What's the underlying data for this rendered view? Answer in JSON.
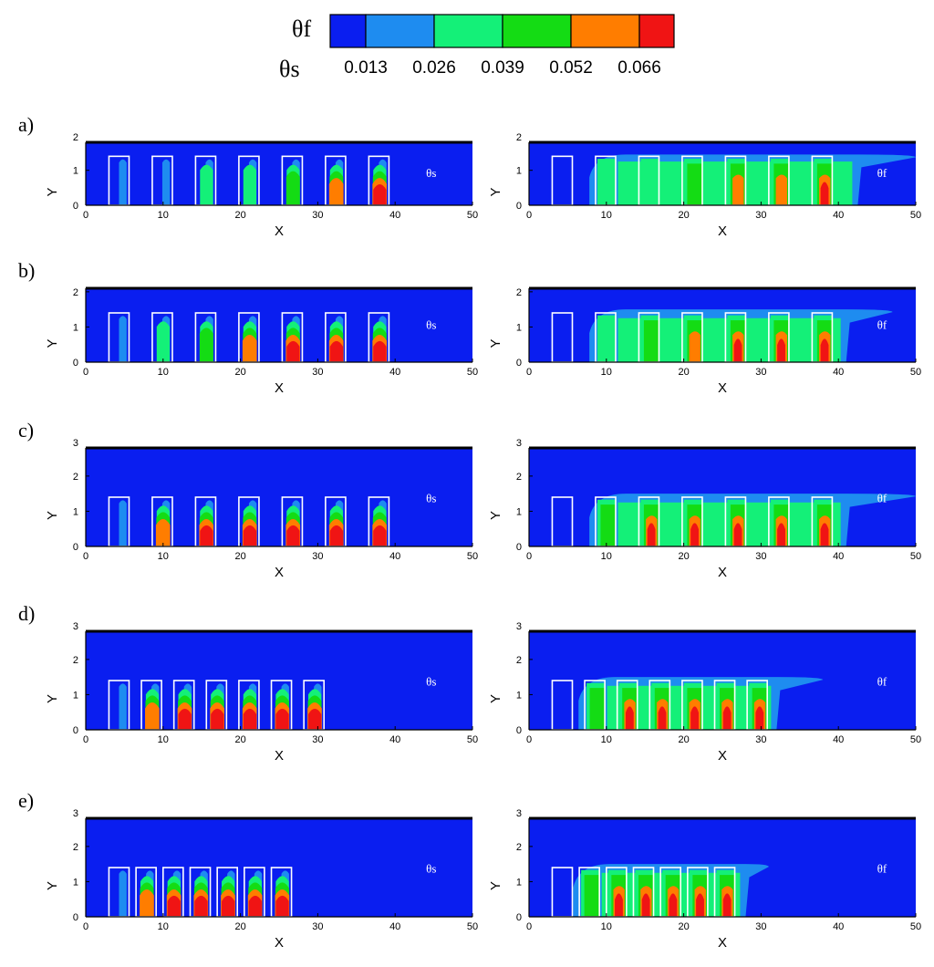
{
  "colorbar": {
    "title_fluid": "θf",
    "title_solid": "θs",
    "tick_labels": [
      "0.013",
      "0.026",
      "0.039",
      "0.052",
      "0.066"
    ],
    "colors": [
      "#0a1ef0",
      "#1e8cf0",
      "#14f078",
      "#14dc14",
      "#ff7d00",
      "#f01414"
    ]
  },
  "chart_data": [
    {
      "id": "a-solid",
      "row": "a)",
      "field": "θs",
      "type": "heatmap",
      "xlabel": "X",
      "ylabel": "Y",
      "xlim": [
        0,
        50
      ],
      "ylim": [
        0,
        1.8
      ],
      "xticks": [
        "0",
        "10",
        "20",
        "30",
        "40",
        "50"
      ],
      "yticks": [
        "0",
        "1",
        "2"
      ],
      "ymax": 1.8,
      "block_x": [
        3,
        8.6,
        14.2,
        19.8,
        25.4,
        31,
        36.6
      ],
      "block_width": 2.6,
      "block_height": 1.4,
      "levels": [
        1,
        1,
        2,
        2,
        3,
        4,
        5
      ],
      "hot_rows": [
        1,
        1,
        1,
        1,
        2,
        2,
        2
      ]
    },
    {
      "id": "a-fluid",
      "row": "a)",
      "field": "θf",
      "type": "heatmap",
      "xlabel": "X",
      "ylabel": "Y",
      "xlim": [
        0,
        50
      ],
      "ylim": [
        0,
        1.8
      ],
      "xticks": [
        "0",
        "10",
        "20",
        "30",
        "40",
        "50"
      ],
      "yticks": [
        "0",
        "1",
        "2"
      ],
      "ymax": 1.8,
      "block_x": [
        3,
        8.6,
        14.2,
        19.8,
        25.4,
        31,
        36.6
      ],
      "block_width": 2.6,
      "block_height": 1.4,
      "plume_end_x": 42.5,
      "plume_top": 1.45,
      "plume_tail_x": 50,
      "levels": [
        0,
        1,
        2,
        3,
        4,
        4,
        5
      ]
    },
    {
      "id": "b-solid",
      "row": "b)",
      "field": "θs",
      "type": "heatmap",
      "xlabel": "X",
      "ylabel": "Y",
      "xlim": [
        0,
        50
      ],
      "ylim": [
        0,
        2.1
      ],
      "xticks": [
        "0",
        "10",
        "20",
        "30",
        "40",
        "50"
      ],
      "yticks": [
        "0",
        "1",
        "2"
      ],
      "ymax": 2.1,
      "block_x": [
        3,
        8.6,
        14.2,
        19.8,
        25.4,
        31,
        36.6
      ],
      "block_width": 2.6,
      "block_height": 1.4,
      "levels": [
        1,
        2,
        3,
        4,
        5,
        5,
        5
      ]
    },
    {
      "id": "b-fluid",
      "row": "b)",
      "field": "θf",
      "type": "heatmap",
      "xlabel": "X",
      "ylabel": "Y",
      "xlim": [
        0,
        50
      ],
      "ylim": [
        0,
        2.1
      ],
      "xticks": [
        "0",
        "10",
        "20",
        "30",
        "40",
        "50"
      ],
      "yticks": [
        "0",
        "1",
        "2"
      ],
      "ymax": 2.1,
      "block_x": [
        3,
        8.6,
        14.2,
        19.8,
        25.4,
        31,
        36.6
      ],
      "block_width": 2.6,
      "block_height": 1.4,
      "plume_end_x": 41,
      "plume_top": 1.5,
      "plume_tail_x": 47,
      "levels": [
        0,
        1,
        3,
        4,
        5,
        5,
        5
      ]
    },
    {
      "id": "c-solid",
      "row": "c)",
      "field": "θs",
      "type": "heatmap",
      "xlabel": "X",
      "ylabel": "Y",
      "xlim": [
        0,
        50
      ],
      "ylim": [
        0,
        2.8
      ],
      "xticks": [
        "0",
        "10",
        "20",
        "30",
        "40",
        "50"
      ],
      "yticks": [
        "0",
        "1",
        "2",
        "3"
      ],
      "ymax": 2.8,
      "block_x": [
        3,
        8.6,
        14.2,
        19.8,
        25.4,
        31,
        36.6
      ],
      "block_width": 2.6,
      "block_height": 1.4,
      "levels": [
        1,
        4,
        5,
        5,
        5,
        5,
        5
      ]
    },
    {
      "id": "c-fluid",
      "row": "c)",
      "field": "θf",
      "type": "heatmap",
      "xlabel": "X",
      "ylabel": "Y",
      "xlim": [
        0,
        50
      ],
      "ylim": [
        0,
        2.8
      ],
      "xticks": [
        "0",
        "10",
        "20",
        "30",
        "40",
        "50"
      ],
      "yticks": [
        "0",
        "1",
        "2",
        "3"
      ],
      "ymax": 2.8,
      "block_x": [
        3,
        8.6,
        14.2,
        19.8,
        25.4,
        31,
        36.6
      ],
      "block_width": 2.6,
      "block_height": 1.4,
      "plume_end_x": 41,
      "plume_top": 1.5,
      "plume_tail_x": 50,
      "levels": [
        0,
        3,
        5,
        5,
        5,
        5,
        5
      ]
    },
    {
      "id": "d-solid",
      "row": "d)",
      "field": "θs",
      "type": "heatmap",
      "xlabel": "X",
      "ylabel": "Y",
      "xlim": [
        0,
        50
      ],
      "ylim": [
        0,
        2.8
      ],
      "xticks": [
        "0",
        "10",
        "20",
        "30",
        "40",
        "50"
      ],
      "yticks": [
        "0",
        "1",
        "2",
        "3"
      ],
      "ymax": 2.8,
      "block_x": [
        3,
        7.2,
        11.4,
        15.6,
        19.8,
        24,
        28.2
      ],
      "block_width": 2.6,
      "block_height": 1.4,
      "levels": [
        1,
        4,
        5,
        5,
        5,
        5,
        5
      ]
    },
    {
      "id": "d-fluid",
      "row": "d)",
      "field": "θf",
      "type": "heatmap",
      "xlabel": "X",
      "ylabel": "Y",
      "xlim": [
        0,
        50
      ],
      "ylim": [
        0,
        2.8
      ],
      "xticks": [
        "0",
        "10",
        "20",
        "30",
        "40",
        "50"
      ],
      "yticks": [
        "0",
        "1",
        "2",
        "3"
      ],
      "ymax": 2.8,
      "block_x": [
        3,
        7.2,
        11.4,
        15.6,
        19.8,
        24,
        28.2
      ],
      "block_width": 2.6,
      "block_height": 1.4,
      "plume_end_x": 32,
      "plume_top": 1.5,
      "plume_tail_x": 38,
      "levels": [
        0,
        3,
        5,
        5,
        5,
        5,
        5
      ]
    },
    {
      "id": "e-solid",
      "row": "e)",
      "field": "θs",
      "type": "heatmap",
      "xlabel": "X",
      "ylabel": "Y",
      "xlim": [
        0,
        50
      ],
      "ylim": [
        0,
        2.8
      ],
      "xticks": [
        "0",
        "10",
        "20",
        "30",
        "40",
        "50"
      ],
      "yticks": [
        "0",
        "1",
        "2",
        "3"
      ],
      "ymax": 2.8,
      "block_x": [
        3,
        6.5,
        10,
        13.5,
        17,
        20.5,
        24
      ],
      "block_width": 2.6,
      "block_height": 1.4,
      "levels": [
        1,
        4,
        5,
        5,
        5,
        5,
        5
      ]
    },
    {
      "id": "e-fluid",
      "row": "e)",
      "field": "θf",
      "type": "heatmap",
      "xlabel": "X",
      "ylabel": "Y",
      "xlim": [
        0,
        50
      ],
      "ylim": [
        0,
        2.8
      ],
      "xticks": [
        "0",
        "10",
        "20",
        "30",
        "40",
        "50"
      ],
      "yticks": [
        "0",
        "1",
        "2",
        "3"
      ],
      "ymax": 2.8,
      "block_x": [
        3,
        6.5,
        10,
        13.5,
        17,
        20.5,
        24
      ],
      "block_width": 2.6,
      "block_height": 1.4,
      "plume_end_x": 28,
      "plume_top": 1.5,
      "plume_tail_x": 31,
      "levels": [
        0,
        3,
        5,
        5,
        5,
        5,
        5
      ]
    }
  ]
}
